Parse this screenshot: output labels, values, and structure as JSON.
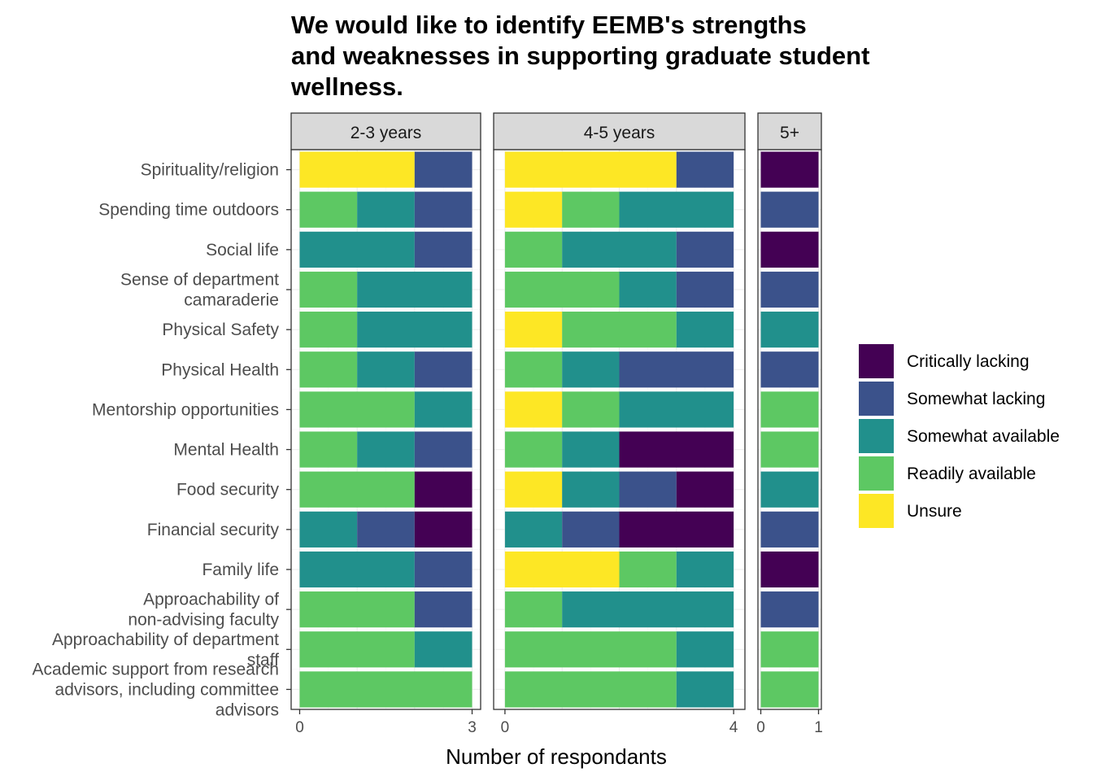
{
  "chart_data": {
    "type": "bar",
    "orientation": "horizontal",
    "stacked": true,
    "title": "We would like to identify EEMB's strengths and weaknesses in supporting graduate student wellness.",
    "title_lines": [
      "We would like to identify EEMB's strengths",
      "and weaknesses in supporting graduate student",
      "wellness."
    ],
    "xlabel": "Number of respondants",
    "ylabel": "",
    "grid": true,
    "legend_position": "right",
    "categories": [
      "Spirituality/religion",
      "Spending time outdoors",
      "Social life",
      "Sense of department camaraderie",
      "Physical Safety",
      "Physical Health",
      "Mentorship opportunities",
      "Mental Health",
      "Food security",
      "Financial security",
      "Family life",
      "Approachability of non-advising faculty",
      "Approachability of department staff",
      "Academic support from research advisors, including committee advisors"
    ],
    "category_label_lines": [
      [
        "Spirituality/religion"
      ],
      [
        "Spending time outdoors"
      ],
      [
        "Social life"
      ],
      [
        "Sense of department",
        "camaraderie"
      ],
      [
        "Physical Safety"
      ],
      [
        "Physical Health"
      ],
      [
        "Mentorship opportunities"
      ],
      [
        "Mental Health"
      ],
      [
        "Food security"
      ],
      [
        "Financial security"
      ],
      [
        "Family life"
      ],
      [
        "Approachability of",
        "non-advising faculty"
      ],
      [
        "Approachability of department",
        "staff"
      ],
      [
        "Academic support from research",
        "advisors, including committee",
        "advisors"
      ]
    ],
    "legend": [
      {
        "name": "Critically lacking",
        "color": "#440154"
      },
      {
        "name": "Somewhat lacking",
        "color": "#3B528B"
      },
      {
        "name": "Somewhat available",
        "color": "#21908C"
      },
      {
        "name": "Readily available",
        "color": "#5DC863"
      },
      {
        "name": "Unsure",
        "color": "#FDE725"
      }
    ],
    "stack_order_left_to_right": [
      "Unsure",
      "Readily available",
      "Somewhat available",
      "Somewhat lacking",
      "Critically lacking"
    ],
    "panels": [
      {
        "label": "2-3 years",
        "xlim": [
          0,
          3
        ],
        "ticks": [
          0,
          3
        ],
        "series": [
          {
            "name": "Unsure",
            "values": [
              2,
              0,
              0,
              0,
              0,
              0,
              0,
              0,
              0,
              0,
              0,
              0,
              0,
              0
            ]
          },
          {
            "name": "Readily available",
            "values": [
              0,
              1,
              0,
              1,
              1,
              1,
              2,
              1,
              2,
              0,
              0,
              2,
              2,
              3
            ]
          },
          {
            "name": "Somewhat available",
            "values": [
              0,
              1,
              2,
              2,
              2,
              1,
              1,
              1,
              0,
              1,
              2,
              0,
              1,
              0
            ]
          },
          {
            "name": "Somewhat lacking",
            "values": [
              1,
              1,
              1,
              0,
              0,
              1,
              0,
              1,
              0,
              1,
              1,
              1,
              0,
              0
            ]
          },
          {
            "name": "Critically lacking",
            "values": [
              0,
              0,
              0,
              0,
              0,
              0,
              0,
              0,
              1,
              1,
              0,
              0,
              0,
              0
            ]
          }
        ]
      },
      {
        "label": "4-5 years",
        "xlim": [
          0,
          4
        ],
        "ticks": [
          0,
          4
        ],
        "series": [
          {
            "name": "Unsure",
            "values": [
              3,
              1,
              0,
              0,
              1,
              0,
              1,
              0,
              1,
              0,
              2,
              0,
              0,
              0
            ]
          },
          {
            "name": "Readily available",
            "values": [
              0,
              1,
              1,
              2,
              2,
              1,
              1,
              1,
              0,
              0,
              1,
              1,
              3,
              3
            ]
          },
          {
            "name": "Somewhat available",
            "values": [
              0,
              2,
              2,
              1,
              1,
              1,
              2,
              1,
              1,
              1,
              1,
              3,
              1,
              1
            ]
          },
          {
            "name": "Somewhat lacking",
            "values": [
              1,
              0,
              1,
              1,
              0,
              2,
              0,
              0,
              1,
              1,
              0,
              0,
              0,
              0
            ]
          },
          {
            "name": "Critically lacking",
            "values": [
              0,
              0,
              0,
              0,
              0,
              0,
              0,
              2,
              1,
              2,
              0,
              0,
              0,
              0
            ]
          }
        ]
      },
      {
        "label": "5+",
        "xlim": [
          0,
          1
        ],
        "ticks": [
          0,
          1
        ],
        "series": [
          {
            "name": "Unsure",
            "values": [
              0,
              0,
              0,
              0,
              0,
              0,
              0,
              0,
              0,
              0,
              0,
              0,
              0,
              0
            ]
          },
          {
            "name": "Readily available",
            "values": [
              0,
              0,
              0,
              0,
              0,
              0,
              1,
              1,
              0,
              0,
              0,
              0,
              1,
              1
            ]
          },
          {
            "name": "Somewhat available",
            "values": [
              0,
              0,
              0,
              0,
              1,
              0,
              0,
              0,
              1,
              0,
              0,
              0,
              0,
              0
            ]
          },
          {
            "name": "Somewhat lacking",
            "values": [
              0,
              1,
              0,
              1,
              0,
              1,
              0,
              0,
              0,
              1,
              0,
              1,
              0,
              0
            ]
          },
          {
            "name": "Critically lacking",
            "values": [
              1,
              0,
              1,
              0,
              0,
              0,
              0,
              0,
              0,
              0,
              1,
              0,
              0,
              0
            ]
          }
        ]
      }
    ]
  }
}
